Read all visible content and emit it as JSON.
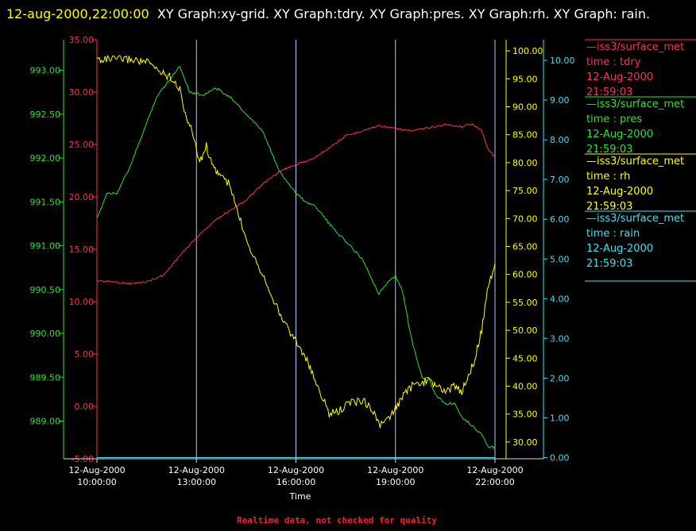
{
  "header": {
    "timestamp": "12-aug-2000,22:00:00",
    "graphs_text": "XY Graph:xy-grid.  XY Graph:tdry.  XY Graph:pres.  XY Graph:rh.  XY Graph: rain."
  },
  "footer": {
    "note": "Realtime data, not checked for quality"
  },
  "chart_data": {
    "type": "line",
    "title": "",
    "xlabel": "Time",
    "x_ticks": [
      {
        "time": "2000-08-12T10:00:00",
        "line1": "12-Aug-2000",
        "line2": "10:00:00"
      },
      {
        "time": "2000-08-12T13:00:00",
        "line1": "12-Aug-2000",
        "line2": "13:00:00"
      },
      {
        "time": "2000-08-12T16:00:00",
        "line1": "12-Aug-2000",
        "line2": "16:00:00"
      },
      {
        "time": "2000-08-12T19:00:00",
        "line1": "12-Aug-2000",
        "line2": "19:00:00"
      },
      {
        "time": "2000-08-12T22:00:00",
        "line1": "12-Aug-2000",
        "line2": "22:00:00"
      }
    ],
    "xlim": [
      "2000-08-12T10:00:00",
      "2000-08-12T22:00:00"
    ],
    "grid": "vertical",
    "axes": [
      {
        "id": "tdry",
        "color": "#ff3050",
        "ylim": [
          -5,
          35
        ],
        "ticks": [
          "-5.00",
          "0.00",
          "5.00",
          "10.00",
          "15.00",
          "20.00",
          "25.00",
          "30.00",
          "35.00"
        ],
        "side": "left"
      },
      {
        "id": "pres",
        "color": "#30e030",
        "ylim": [
          988.57,
          993.35
        ],
        "ticks": [
          "989.00",
          "989.50",
          "990.00",
          "990.50",
          "991.00",
          "991.50",
          "992.00",
          "992.50",
          "993.00"
        ],
        "side": "left"
      },
      {
        "id": "rh",
        "color": "#ffff00",
        "ylim": [
          27,
          102
        ],
        "ticks": [
          "30.00",
          "35.00",
          "40.00",
          "45.00",
          "50.00",
          "55.00",
          "60.00",
          "65.00",
          "70.00",
          "75.00",
          "80.00",
          "85.00",
          "90.00",
          "95.00",
          "100.00"
        ],
        "side": "right"
      },
      {
        "id": "rain",
        "color": "#40e0f0",
        "ylim": [
          -0.03,
          10.52
        ],
        "ticks": [
          "0.00",
          "1.00",
          "2.00",
          "3.00",
          "4.00",
          "5.00",
          "6.00",
          "7.00",
          "8.00",
          "9.00",
          "10.00"
        ],
        "side": "right"
      }
    ],
    "legend_position": "right",
    "series": [
      {
        "name": "tdry",
        "axis": "tdry",
        "color": "#ff3050",
        "legend": {
          "source": "—iss3/surface_met",
          "label": "time : tdry",
          "date": "12-Aug-2000",
          "time": "21:59:03"
        },
        "x_hours": [
          10.0,
          10.5,
          11.0,
          11.5,
          12.0,
          12.5,
          13.0,
          13.5,
          14.0,
          14.5,
          15.0,
          15.5,
          16.0,
          16.5,
          17.0,
          17.5,
          18.0,
          18.5,
          19.0,
          19.5,
          20.0,
          20.5,
          21.0,
          21.3,
          21.6,
          21.8,
          22.0
        ],
        "values": [
          12.0,
          11.9,
          11.7,
          11.9,
          12.5,
          14.4,
          16.1,
          17.6,
          18.7,
          19.7,
          21.2,
          22.4,
          23.1,
          23.6,
          24.7,
          25.8,
          26.3,
          26.8,
          26.5,
          26.3,
          26.6,
          26.9,
          26.7,
          27.0,
          26.3,
          24.5,
          23.8
        ]
      },
      {
        "name": "pres",
        "axis": "pres",
        "color": "#30e030",
        "legend": {
          "source": "—iss3/surface_met",
          "label": "time : pres",
          "date": "12-Aug-2000",
          "time": "21:59:03"
        },
        "x_hours": [
          10.0,
          10.3,
          10.6,
          11.0,
          11.4,
          11.8,
          12.2,
          12.5,
          12.8,
          13.2,
          13.6,
          14.0,
          14.5,
          15.0,
          15.5,
          15.8,
          16.0,
          16.3,
          16.6,
          17.0,
          17.5,
          18.0,
          18.5,
          18.8,
          19.0,
          19.2,
          19.5,
          19.8,
          20.0,
          20.2,
          20.5,
          20.8,
          21.0,
          21.3,
          21.6,
          21.8,
          22.0
        ],
        "values": [
          991.3,
          991.6,
          991.6,
          991.9,
          992.3,
          992.7,
          992.9,
          993.05,
          992.75,
          992.72,
          992.8,
          992.7,
          992.5,
          992.3,
          991.85,
          991.7,
          991.6,
          991.5,
          991.45,
          991.25,
          991.05,
          990.85,
          990.45,
          990.6,
          990.65,
          990.5,
          989.9,
          989.5,
          989.5,
          989.3,
          989.2,
          989.2,
          989.05,
          988.95,
          988.85,
          988.7,
          988.7
        ]
      },
      {
        "name": "rh",
        "axis": "rh",
        "color": "#ffff00",
        "legend": {
          "source": "—iss3/surface_met",
          "label": "time : rh",
          "date": "12-Aug-2000",
          "time": "21:59:03"
        },
        "x_hours": [
          10.0,
          10.5,
          11.0,
          11.5,
          12.0,
          12.3,
          12.5,
          12.7,
          12.9,
          13.1,
          13.3,
          13.5,
          13.7,
          14.0,
          14.3,
          14.6,
          15.0,
          15.3,
          15.5,
          15.8,
          16.0,
          16.3,
          16.5,
          16.8,
          17.0,
          17.3,
          17.6,
          18.0,
          18.3,
          18.5,
          18.8,
          19.0,
          19.2,
          19.5,
          20.0,
          20.5,
          20.8,
          21.0,
          21.2,
          21.4,
          21.6,
          21.8,
          22.0
        ],
        "values": [
          98.5,
          98.5,
          98.5,
          98.0,
          96.0,
          95.0,
          93.0,
          88.0,
          85.0,
          80.0,
          83.0,
          79.0,
          78.0,
          76.0,
          70.0,
          65.0,
          60.0,
          56.0,
          53.0,
          50.0,
          48.0,
          45.0,
          42.0,
          38.0,
          35.0,
          35.5,
          37.0,
          37.5,
          36.0,
          33.0,
          34.0,
          36.0,
          38.0,
          40.0,
          41.0,
          39.0,
          40.0,
          39.0,
          42.0,
          45.0,
          50.0,
          58.0,
          62.0
        ]
      },
      {
        "name": "rain",
        "axis": "rain",
        "color": "#40e0f0",
        "legend": {
          "source": "—iss3/surface_met",
          "label": "time : rain",
          "date": "12-Aug-2000",
          "time": "21:59:03"
        },
        "x_hours": [
          10.0,
          22.0
        ],
        "values": [
          0.0,
          0.0
        ]
      }
    ]
  }
}
